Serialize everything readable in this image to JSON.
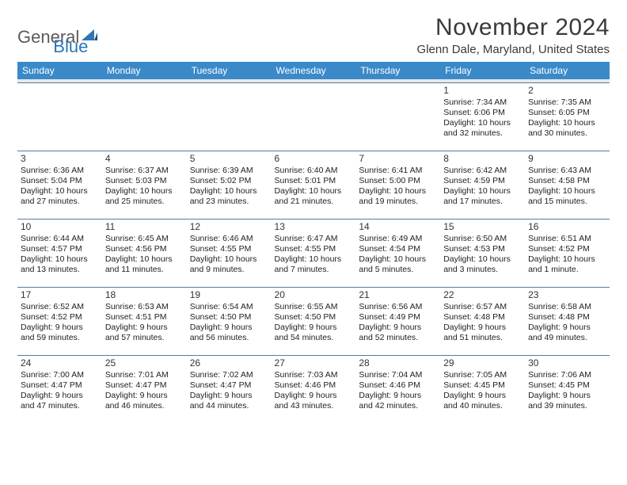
{
  "logo": {
    "text1": "General",
    "text2": "Blue"
  },
  "title": "November 2024",
  "location": "Glenn Dale, Maryland, United States",
  "columns": [
    "Sunday",
    "Monday",
    "Tuesday",
    "Wednesday",
    "Thursday",
    "Friday",
    "Saturday"
  ],
  "colors": {
    "header_bg": "#3a89c9",
    "header_text": "#ffffff",
    "cell_border": "#5a7a9a",
    "spacer_bg": "#e8e8e8",
    "logo_gray": "#5a5a5a",
    "logo_blue": "#2e76b5"
  },
  "weeks": [
    [
      null,
      null,
      null,
      null,
      null,
      {
        "n": "1",
        "sr": "Sunrise: 7:34 AM",
        "ss": "Sunset: 6:06 PM",
        "d1": "Daylight: 10 hours",
        "d2": "and 32 minutes."
      },
      {
        "n": "2",
        "sr": "Sunrise: 7:35 AM",
        "ss": "Sunset: 6:05 PM",
        "d1": "Daylight: 10 hours",
        "d2": "and 30 minutes."
      }
    ],
    [
      {
        "n": "3",
        "sr": "Sunrise: 6:36 AM",
        "ss": "Sunset: 5:04 PM",
        "d1": "Daylight: 10 hours",
        "d2": "and 27 minutes."
      },
      {
        "n": "4",
        "sr": "Sunrise: 6:37 AM",
        "ss": "Sunset: 5:03 PM",
        "d1": "Daylight: 10 hours",
        "d2": "and 25 minutes."
      },
      {
        "n": "5",
        "sr": "Sunrise: 6:39 AM",
        "ss": "Sunset: 5:02 PM",
        "d1": "Daylight: 10 hours",
        "d2": "and 23 minutes."
      },
      {
        "n": "6",
        "sr": "Sunrise: 6:40 AM",
        "ss": "Sunset: 5:01 PM",
        "d1": "Daylight: 10 hours",
        "d2": "and 21 minutes."
      },
      {
        "n": "7",
        "sr": "Sunrise: 6:41 AM",
        "ss": "Sunset: 5:00 PM",
        "d1": "Daylight: 10 hours",
        "d2": "and 19 minutes."
      },
      {
        "n": "8",
        "sr": "Sunrise: 6:42 AM",
        "ss": "Sunset: 4:59 PM",
        "d1": "Daylight: 10 hours",
        "d2": "and 17 minutes."
      },
      {
        "n": "9",
        "sr": "Sunrise: 6:43 AM",
        "ss": "Sunset: 4:58 PM",
        "d1": "Daylight: 10 hours",
        "d2": "and 15 minutes."
      }
    ],
    [
      {
        "n": "10",
        "sr": "Sunrise: 6:44 AM",
        "ss": "Sunset: 4:57 PM",
        "d1": "Daylight: 10 hours",
        "d2": "and 13 minutes."
      },
      {
        "n": "11",
        "sr": "Sunrise: 6:45 AM",
        "ss": "Sunset: 4:56 PM",
        "d1": "Daylight: 10 hours",
        "d2": "and 11 minutes."
      },
      {
        "n": "12",
        "sr": "Sunrise: 6:46 AM",
        "ss": "Sunset: 4:55 PM",
        "d1": "Daylight: 10 hours",
        "d2": "and 9 minutes."
      },
      {
        "n": "13",
        "sr": "Sunrise: 6:47 AM",
        "ss": "Sunset: 4:55 PM",
        "d1": "Daylight: 10 hours",
        "d2": "and 7 minutes."
      },
      {
        "n": "14",
        "sr": "Sunrise: 6:49 AM",
        "ss": "Sunset: 4:54 PM",
        "d1": "Daylight: 10 hours",
        "d2": "and 5 minutes."
      },
      {
        "n": "15",
        "sr": "Sunrise: 6:50 AM",
        "ss": "Sunset: 4:53 PM",
        "d1": "Daylight: 10 hours",
        "d2": "and 3 minutes."
      },
      {
        "n": "16",
        "sr": "Sunrise: 6:51 AM",
        "ss": "Sunset: 4:52 PM",
        "d1": "Daylight: 10 hours",
        "d2": "and 1 minute."
      }
    ],
    [
      {
        "n": "17",
        "sr": "Sunrise: 6:52 AM",
        "ss": "Sunset: 4:52 PM",
        "d1": "Daylight: 9 hours",
        "d2": "and 59 minutes."
      },
      {
        "n": "18",
        "sr": "Sunrise: 6:53 AM",
        "ss": "Sunset: 4:51 PM",
        "d1": "Daylight: 9 hours",
        "d2": "and 57 minutes."
      },
      {
        "n": "19",
        "sr": "Sunrise: 6:54 AM",
        "ss": "Sunset: 4:50 PM",
        "d1": "Daylight: 9 hours",
        "d2": "and 56 minutes."
      },
      {
        "n": "20",
        "sr": "Sunrise: 6:55 AM",
        "ss": "Sunset: 4:50 PM",
        "d1": "Daylight: 9 hours",
        "d2": "and 54 minutes."
      },
      {
        "n": "21",
        "sr": "Sunrise: 6:56 AM",
        "ss": "Sunset: 4:49 PM",
        "d1": "Daylight: 9 hours",
        "d2": "and 52 minutes."
      },
      {
        "n": "22",
        "sr": "Sunrise: 6:57 AM",
        "ss": "Sunset: 4:48 PM",
        "d1": "Daylight: 9 hours",
        "d2": "and 51 minutes."
      },
      {
        "n": "23",
        "sr": "Sunrise: 6:58 AM",
        "ss": "Sunset: 4:48 PM",
        "d1": "Daylight: 9 hours",
        "d2": "and 49 minutes."
      }
    ],
    [
      {
        "n": "24",
        "sr": "Sunrise: 7:00 AM",
        "ss": "Sunset: 4:47 PM",
        "d1": "Daylight: 9 hours",
        "d2": "and 47 minutes."
      },
      {
        "n": "25",
        "sr": "Sunrise: 7:01 AM",
        "ss": "Sunset: 4:47 PM",
        "d1": "Daylight: 9 hours",
        "d2": "and 46 minutes."
      },
      {
        "n": "26",
        "sr": "Sunrise: 7:02 AM",
        "ss": "Sunset: 4:47 PM",
        "d1": "Daylight: 9 hours",
        "d2": "and 44 minutes."
      },
      {
        "n": "27",
        "sr": "Sunrise: 7:03 AM",
        "ss": "Sunset: 4:46 PM",
        "d1": "Daylight: 9 hours",
        "d2": "and 43 minutes."
      },
      {
        "n": "28",
        "sr": "Sunrise: 7:04 AM",
        "ss": "Sunset: 4:46 PM",
        "d1": "Daylight: 9 hours",
        "d2": "and 42 minutes."
      },
      {
        "n": "29",
        "sr": "Sunrise: 7:05 AM",
        "ss": "Sunset: 4:45 PM",
        "d1": "Daylight: 9 hours",
        "d2": "and 40 minutes."
      },
      {
        "n": "30",
        "sr": "Sunrise: 7:06 AM",
        "ss": "Sunset: 4:45 PM",
        "d1": "Daylight: 9 hours",
        "d2": "and 39 minutes."
      }
    ]
  ]
}
